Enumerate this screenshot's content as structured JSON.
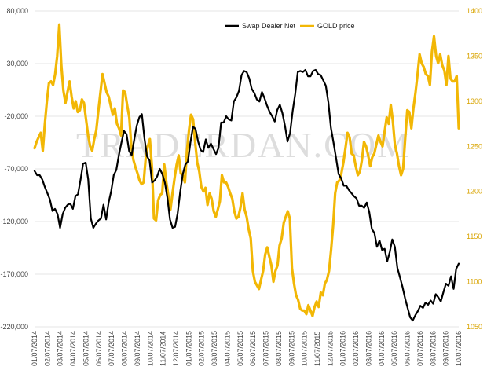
{
  "chart_data": {
    "type": "line",
    "title": "",
    "watermark": "TRADERDAN.COM",
    "colors": {
      "swap": "#000000",
      "gold": "#f2b705",
      "grid": "#e6e6e6",
      "right_axis_text": "#d9a400"
    },
    "left_axis": {
      "min": -220000,
      "max": 80000,
      "ticks": [
        "80,000",
        "30,000",
        "-20,000",
        "-70,000",
        "-120,000",
        "-170,000",
        "-220,000"
      ],
      "tick_values": [
        80000,
        30000,
        -20000,
        -70000,
        -120000,
        -170000,
        -220000
      ]
    },
    "right_axis": {
      "min": 1050,
      "max": 1400,
      "ticks": [
        "1400",
        "1350",
        "1300",
        "1250",
        "1200",
        "1150",
        "1100",
        "1050"
      ],
      "tick_values": [
        1400,
        1350,
        1300,
        1250,
        1200,
        1150,
        1100,
        1050
      ]
    },
    "x_tick_labels": [
      "01/07/2014",
      "02/07/2014",
      "03/07/2014",
      "04/07/2014",
      "05/07/2014",
      "06/07/2014",
      "07/07/2014",
      "08/07/2014",
      "09/07/2014",
      "10/07/2014",
      "11/07/2014",
      "12/07/2014",
      "01/07/2015",
      "02/07/2015",
      "03/07/2015",
      "04/07/2015",
      "05/07/2015",
      "06/07/2015",
      "07/07/2015",
      "08/07/2015",
      "09/07/2015",
      "10/07/2015",
      "11/07/2015",
      "12/07/2015",
      "01/07/2016",
      "02/07/2016",
      "03/07/2016",
      "04/07/2016",
      "05/07/2016",
      "06/07/2016",
      "07/07/2016",
      "08/07/2016",
      "09/07/2016",
      "10/07/2016"
    ],
    "legend": [
      {
        "name": "Swap Dealer Net",
        "axis": "left"
      },
      {
        "name": "GOLD price",
        "axis": "right"
      }
    ],
    "series": [
      {
        "name": "Swap Dealer Net",
        "axis": "left",
        "values": [
          -72000,
          -76000,
          -76000,
          -80000,
          -87000,
          -93000,
          -99000,
          -110000,
          -108000,
          -113000,
          -126000,
          -113000,
          -107000,
          -104000,
          -103000,
          -108000,
          -96000,
          -94000,
          -80000,
          -65000,
          -64000,
          -80000,
          -117000,
          -126000,
          -122000,
          -119000,
          -117000,
          -104000,
          -118000,
          -102000,
          -91000,
          -76000,
          -71000,
          -57000,
          -45000,
          -34000,
          -37000,
          -53000,
          -57000,
          -42000,
          -29000,
          -21000,
          -18000,
          -41000,
          -58000,
          -62000,
          -83000,
          -81000,
          -77000,
          -70000,
          -75000,
          -83000,
          -98000,
          -118000,
          -126000,
          -125000,
          -112000,
          -92000,
          -75000,
          -66000,
          -63000,
          -45000,
          -30000,
          -32000,
          -44000,
          -52000,
          -54000,
          -42000,
          -50000,
          -46000,
          -51000,
          -56000,
          -50000,
          -26000,
          -26000,
          -20000,
          -23000,
          -24000,
          -6000,
          -2000,
          4000,
          19000,
          23000,
          22000,
          16000,
          6000,
          2000,
          -4000,
          -6000,
          3000,
          -3000,
          -10000,
          -16000,
          -20000,
          -25000,
          -14000,
          -9000,
          -17000,
          -29000,
          -44000,
          -36000,
          -15000,
          1000,
          22000,
          23000,
          22000,
          24000,
          18000,
          18000,
          23000,
          24000,
          20000,
          19000,
          14000,
          9000,
          -7000,
          -31000,
          -45000,
          -60000,
          -75000,
          -79000,
          -86000,
          -86000,
          -90000,
          -93000,
          -96000,
          -98000,
          -105000,
          -105000,
          -107000,
          -102000,
          -111000,
          -127000,
          -131000,
          -144000,
          -138000,
          -147000,
          -146000,
          -158000,
          -149000,
          -137000,
          -144000,
          -164000,
          -173000,
          -182000,
          -193000,
          -202000,
          -211000,
          -214000,
          -209000,
          -205000,
          -200000,
          -202000,
          -197000,
          -199000,
          -195000,
          -198000,
          -189000,
          -192000,
          -196000,
          -187000,
          -179000,
          -181000,
          -172000,
          -184000,
          -165000,
          -160000
        ]
      },
      {
        "name": "GOLD price",
        "axis": "right",
        "values": [
          1248,
          1255,
          1260,
          1265,
          1245,
          1275,
          1300,
          1320,
          1322,
          1318,
          1330,
          1350,
          1385,
          1340,
          1312,
          1298,
          1310,
          1322,
          1305,
          1292,
          1300,
          1288,
          1290,
          1302,
          1298,
          1280,
          1262,
          1250,
          1245,
          1258,
          1268,
          1290,
          1310,
          1330,
          1320,
          1310,
          1305,
          1295,
          1285,
          1292,
          1275,
          1270,
          1262,
          1312,
          1310,
          1295,
          1282,
          1250,
          1235,
          1227,
          1220,
          1212,
          1208,
          1210,
          1238,
          1250,
          1258,
          1228,
          1170,
          1168,
          1190,
          1196,
          1198,
          1230,
          1210,
          1195,
          1180,
          1198,
          1215,
          1230,
          1240,
          1220,
          1218,
          1210,
          1245,
          1268,
          1285,
          1280,
          1254,
          1232,
          1222,
          1205,
          1200,
          1204,
          1185,
          1198,
          1192,
          1178,
          1172,
          1180,
          1189,
          1218,
          1210,
          1210,
          1205,
          1198,
          1192,
          1178,
          1170,
          1172,
          1182,
          1198,
          1180,
          1172,
          1158,
          1148,
          1112,
          1100,
          1096,
          1092,
          1102,
          1112,
          1130,
          1138,
          1128,
          1118,
          1100,
          1112,
          1118,
          1140,
          1148,
          1165,
          1172,
          1178,
          1170,
          1115,
          1098,
          1085,
          1080,
          1070,
          1068,
          1068,
          1064,
          1074,
          1068,
          1062,
          1072,
          1078,
          1072,
          1088,
          1085,
          1098,
          1102,
          1112,
          1135,
          1162,
          1198,
          1210,
          1212,
          1220,
          1232,
          1248,
          1265,
          1260,
          1242,
          1240,
          1228,
          1218,
          1222,
          1235,
          1255,
          1250,
          1240,
          1228,
          1238,
          1242,
          1252,
          1262,
          1255,
          1250,
          1266,
          1282,
          1275,
          1296,
          1278,
          1252,
          1242,
          1228,
          1218,
          1225,
          1258,
          1290,
          1288,
          1270,
          1292,
          1310,
          1330,
          1352,
          1342,
          1338,
          1330,
          1328,
          1318,
          1355,
          1372,
          1350,
          1342,
          1352,
          1340,
          1334,
          1318,
          1350,
          1325,
          1322,
          1322,
          1328,
          1270
        ]
      }
    ]
  }
}
